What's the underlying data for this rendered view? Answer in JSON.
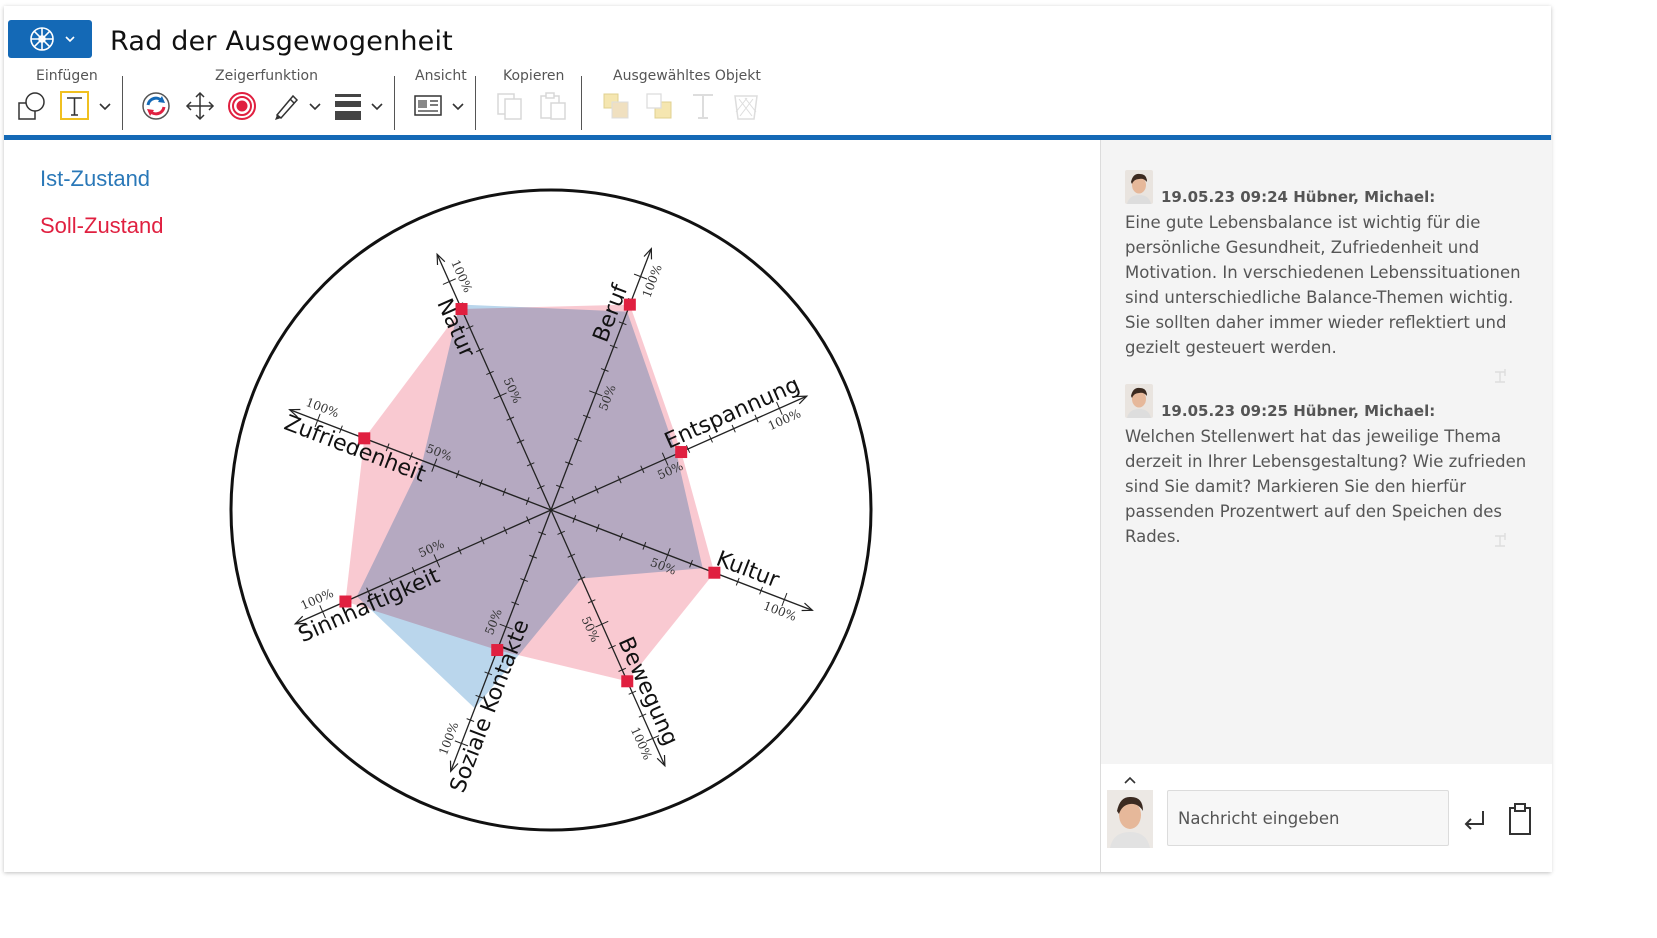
{
  "app": {
    "title": "Rad der Ausgewogenheit",
    "accent": "#1469b6"
  },
  "ribbon": {
    "groups": [
      {
        "label": "Einfügen"
      },
      {
        "label": "Zeigerfunktion"
      },
      {
        "label": "Ansicht"
      },
      {
        "label": "Kopieren"
      },
      {
        "label": "Ausgewähltes Objekt"
      }
    ]
  },
  "legend": {
    "ist": {
      "label": "Ist-Zustand",
      "color": "#2a78b8"
    },
    "soll": {
      "label": "Soll-Zustand",
      "color": "#e02040"
    }
  },
  "chart_data": {
    "type": "radar",
    "axes": [
      "Beruf",
      "Entspannung",
      "Kultur",
      "Bewegung",
      "Soziale Kontakte",
      "Sinnhaftigkeit",
      "Zufriedenheit",
      "Natur"
    ],
    "tick_labels": {
      "mid": "50%",
      "max": "100%"
    },
    "range": [
      0,
      100
    ],
    "series": [
      {
        "name": "Ist-Zustand",
        "color": "#9cc4e4",
        "values": [
          85,
          55,
          65,
          30,
          85,
          85,
          55,
          90
        ]
      },
      {
        "name": "Soll-Zustand",
        "color": "#f5a8b4",
        "values": [
          88,
          57,
          70,
          75,
          60,
          90,
          80,
          88
        ]
      }
    ]
  },
  "chat": {
    "messages": [
      {
        "meta": "19.05.23 09:24 Hübner, Michael:",
        "text": "Eine gute Lebensbalance ist wichtig für die persönliche Gesundheit, Zufriedenheit und Motivation. In verschiedenen Lebenssituationen sind unterschiedliche Balance-Themen wichtig. Sie sollten daher immer wieder reflektiert und gezielt gesteuert werden."
      },
      {
        "meta": "19.05.23 09:25 Hübner, Michael:",
        "text": "Welchen Stellenwert hat das jeweilige Thema derzeit in Ihrer Lebensgestaltung? Wie zufrieden sind Sie damit? Markieren Sie den hierfür passenden Prozentwert auf den Speichen des Rades."
      }
    ],
    "input_placeholder": "Nachricht eingeben"
  }
}
